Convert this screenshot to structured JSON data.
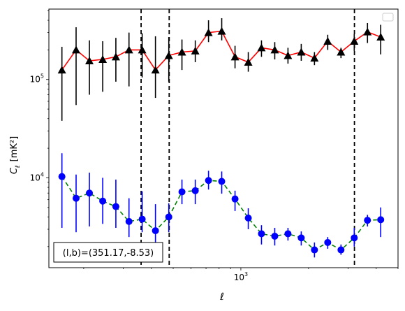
{
  "chart_data": {
    "type": "line",
    "xscale": "log",
    "yscale": "log",
    "xlabel": "ℓ",
    "ylabel_main": "C",
    "ylabel_sub": "ℓ",
    "ylabel_unit": "[mK²]",
    "xlim": [
      140,
      5000
    ],
    "ylim": [
      1220,
      520000
    ],
    "x_ticks": [
      {
        "value": 1000,
        "base": "10",
        "exp": "3"
      }
    ],
    "y_ticks": [
      {
        "value": 10000,
        "base": "10",
        "exp": "4"
      },
      {
        "value": 100000,
        "base": "10",
        "exp": "5"
      }
    ],
    "annotation": "(l,b)=(351.17,-8.53)",
    "vlines": [
      360,
      480,
      3200
    ],
    "legend": {
      "placement": "top-right",
      "entries": []
    },
    "colors": {
      "upper_line": "#ff0000",
      "upper_marker": "#000000",
      "lower_line": "#008000",
      "lower_marker": "#0000ff",
      "lower_err": "#0000ff"
    },
    "series": [
      {
        "x": [
          160,
          185,
          212,
          243,
          278,
          318,
          364,
          417,
          478,
          547,
          627,
          718,
          822,
          942,
          1079,
          1235,
          1415,
          1620,
          1856,
          2125,
          2434,
          2788,
          3193,
          3657,
          4188
        ],
        "y": [
          125000,
          200000,
          155000,
          160000,
          170000,
          200000,
          200000,
          125000,
          175000,
          190000,
          195000,
          300000,
          310000,
          170000,
          150000,
          210000,
          200000,
          175000,
          190000,
          165000,
          245000,
          190000,
          245000,
          305000,
          270000
        ],
        "yerr_low": [
          87000,
          145000,
          85000,
          85000,
          75000,
          115000,
          95000,
          60000,
          80000,
          65000,
          45000,
          60000,
          60000,
          40000,
          30000,
          40000,
          40000,
          30000,
          35000,
          25000,
          45000,
          25000,
          50000,
          70000,
          90000
        ],
        "yerr_high": [
          90000,
          140000,
          95000,
          85000,
          95000,
          100000,
          95000,
          150000,
          95000,
          65000,
          55000,
          100000,
          110000,
          50000,
          40000,
          40000,
          40000,
          35000,
          40000,
          25000,
          40000,
          20000,
          45000,
          70000,
          90000
        ],
        "marker": "triangle"
      },
      {
        "x": [
          160,
          185,
          212,
          243,
          278,
          318,
          364,
          417,
          478,
          547,
          627,
          718,
          822,
          942,
          1079,
          1235,
          1415,
          1620,
          1856,
          2125,
          2434,
          2788,
          3193,
          3657,
          4188
        ],
        "y": [
          10300,
          6200,
          7000,
          5800,
          5100,
          3600,
          3800,
          2900,
          4000,
          7200,
          7400,
          9400,
          9200,
          6100,
          3900,
          2700,
          2550,
          2700,
          2450,
          1850,
          2200,
          1850,
          2450,
          3700,
          3750
        ],
        "yerr_low": [
          7200,
          3400,
          3800,
          2400,
          2000,
          1100,
          1000,
          800,
          1200,
          1800,
          2000,
          1800,
          2300,
          1500,
          900,
          600,
          500,
          400,
          400,
          300,
          300,
          200,
          450,
          500,
          1250
        ],
        "yerr_high": [
          7500,
          4600,
          4300,
          4200,
          4500,
          2600,
          3500,
          2500,
          1500,
          2400,
          2200,
          2400,
          2400,
          1300,
          1000,
          600,
          550,
          400,
          400,
          350,
          300,
          250,
          650,
          500,
          1250
        ],
        "marker": "circle"
      }
    ]
  }
}
